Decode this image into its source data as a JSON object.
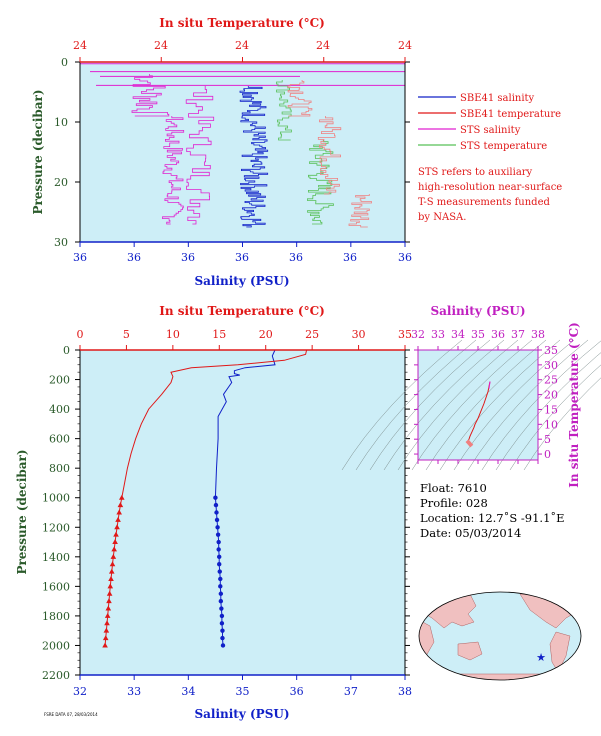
{
  "colors": {
    "background": "#cdeef7",
    "salinity": "#1020c8",
    "temperature": "#e01818",
    "sts_salinity": "#e020d0",
    "sts_temperature": "#58c058",
    "pressure_axis": "#2a5a2a",
    "inset_axis": "#c020c0"
  },
  "chart_data": [
    {
      "type": "line",
      "title": "",
      "xlabel_bottom": "Salinity (PSU)",
      "xlabel_top": "In situ Temperature (°C)",
      "ylabel": "Pressure (decibar)",
      "x_ticks_bottom": [
        "36",
        "36",
        "36",
        "36",
        "36",
        "36",
        "36"
      ],
      "x_ticks_top": [
        "24",
        "24",
        "24",
        "24",
        "24"
      ],
      "y_ticks": [
        "0",
        "10",
        "20",
        "30"
      ],
      "ylim": [
        0,
        30
      ],
      "y_inverted": true,
      "legend": {
        "placement": "right",
        "entries": [
          {
            "label": "SBE41 salinity",
            "color": "#1020c8"
          },
          {
            "label": "SBE41 temperature",
            "color": "#e01818"
          },
          {
            "label": "STS salinity",
            "color": "#e020d0"
          },
          {
            "label": "STS temperature",
            "color": "#58c058"
          }
        ]
      },
      "note": [
        "STS refers to auxiliary",
        "high-resolution near-surface",
        "T-S measurements funded",
        "by NASA."
      ]
    },
    {
      "type": "line",
      "title": "",
      "xlabel_bottom": "Salinity (PSU)",
      "xlabel_top": "In situ Temperature (°C)",
      "ylabel": "Pressure (decibar)",
      "xlim_salinity": [
        32,
        38
      ],
      "xlim_temperature": [
        0,
        35
      ],
      "ylim": [
        0,
        2200
      ],
      "y_inverted": true,
      "x_ticks_bottom": [
        32,
        33,
        34,
        35,
        36,
        37,
        38
      ],
      "x_ticks_top": [
        0,
        5,
        10,
        15,
        20,
        25,
        30,
        35
      ],
      "y_ticks": [
        0,
        200,
        400,
        600,
        800,
        1000,
        1200,
        1400,
        1600,
        1800,
        2000,
        2200
      ],
      "series": [
        {
          "name": "SBE41 salinity",
          "color": "#1020c8",
          "line": [
            [
              35.6,
              0
            ],
            [
              35.55,
              40
            ],
            [
              35.6,
              100
            ],
            [
              35.05,
              120
            ],
            [
              34.85,
              140
            ],
            [
              34.85,
              160
            ],
            [
              34.95,
              170
            ],
            [
              34.75,
              180
            ],
            [
              34.8,
              220
            ],
            [
              34.65,
              300
            ],
            [
              34.7,
              350
            ],
            [
              34.55,
              450
            ],
            [
              34.55,
              600
            ],
            [
              34.52,
              800
            ],
            [
              34.5,
              1000
            ]
          ],
          "points": [
            [
              34.5,
              1000
            ],
            [
              34.51,
              1050
            ],
            [
              34.52,
              1100
            ],
            [
              34.53,
              1150
            ],
            [
              34.54,
              1200
            ],
            [
              34.55,
              1250
            ],
            [
              34.56,
              1300
            ],
            [
              34.56,
              1350
            ],
            [
              34.57,
              1400
            ],
            [
              34.57,
              1450
            ],
            [
              34.58,
              1500
            ],
            [
              34.59,
              1550
            ],
            [
              34.59,
              1600
            ],
            [
              34.6,
              1650
            ],
            [
              34.6,
              1700
            ],
            [
              34.61,
              1750
            ],
            [
              34.62,
              1800
            ],
            [
              34.62,
              1850
            ],
            [
              34.63,
              1900
            ],
            [
              34.63,
              1950
            ],
            [
              34.64,
              2000
            ]
          ]
        },
        {
          "name": "SBE41 temperature",
          "color": "#e01818",
          "line": [
            [
              24.4,
              0
            ],
            [
              24.3,
              30
            ],
            [
              22,
              70
            ],
            [
              17,
              100
            ],
            [
              12,
              120
            ],
            [
              9.8,
              150
            ],
            [
              10.0,
              180
            ],
            [
              9.8,
              220
            ],
            [
              8.8,
              300
            ],
            [
              7.4,
              400
            ],
            [
              6.6,
              500
            ],
            [
              6.0,
              600
            ],
            [
              5.5,
              700
            ],
            [
              5.1,
              800
            ],
            [
              4.8,
              900
            ],
            [
              4.5,
              1000
            ]
          ],
          "points": [
            [
              4.5,
              1000
            ],
            [
              4.35,
              1050
            ],
            [
              4.22,
              1100
            ],
            [
              4.1,
              1150
            ],
            [
              3.99,
              1200
            ],
            [
              3.88,
              1250
            ],
            [
              3.78,
              1300
            ],
            [
              3.68,
              1350
            ],
            [
              3.59,
              1400
            ],
            [
              3.5,
              1450
            ],
            [
              3.42,
              1500
            ],
            [
              3.34,
              1550
            ],
            [
              3.26,
              1600
            ],
            [
              3.19,
              1650
            ],
            [
              3.12,
              1700
            ],
            [
              3.05,
              1750
            ],
            [
              2.98,
              1800
            ],
            [
              2.91,
              1850
            ],
            [
              2.84,
              1900
            ],
            [
              2.77,
              1950
            ],
            [
              2.7,
              2000
            ]
          ]
        }
      ]
    },
    {
      "type": "line",
      "title": "",
      "xlabel_top": "Salinity (PSU)",
      "ylabel": "In situ Temperature (°C)",
      "xlim": [
        32,
        38
      ],
      "ylim": [
        -2,
        35
      ],
      "x_ticks": [
        32,
        33,
        34,
        35,
        36,
        37,
        38
      ],
      "y_ticks": [
        0,
        5,
        10,
        15,
        20,
        25,
        30,
        35
      ],
      "series": [
        {
          "name": "",
          "color": "#e01818",
          "values": [
            [
              35.6,
              24.4
            ],
            [
              35.5,
              21
            ],
            [
              35.3,
              17
            ],
            [
              35.0,
              12
            ],
            [
              34.85,
              10
            ],
            [
              34.8,
              9
            ],
            [
              34.7,
              7.5
            ],
            [
              34.6,
              6
            ],
            [
              34.55,
              5
            ],
            [
              34.5,
              4.5
            ],
            [
              34.55,
              3.9
            ],
            [
              34.58,
              3.4
            ],
            [
              34.62,
              2.9
            ],
            [
              34.64,
              2.7
            ]
          ]
        }
      ]
    }
  ],
  "info": {
    "float": "Float: 7610",
    "profile": "Profile: 028",
    "location": "Location: 12.7˚S -91.1˚E",
    "date": "Date: 05/03/2014"
  },
  "footer": "FSRE DATA 07, 28/03/2014"
}
